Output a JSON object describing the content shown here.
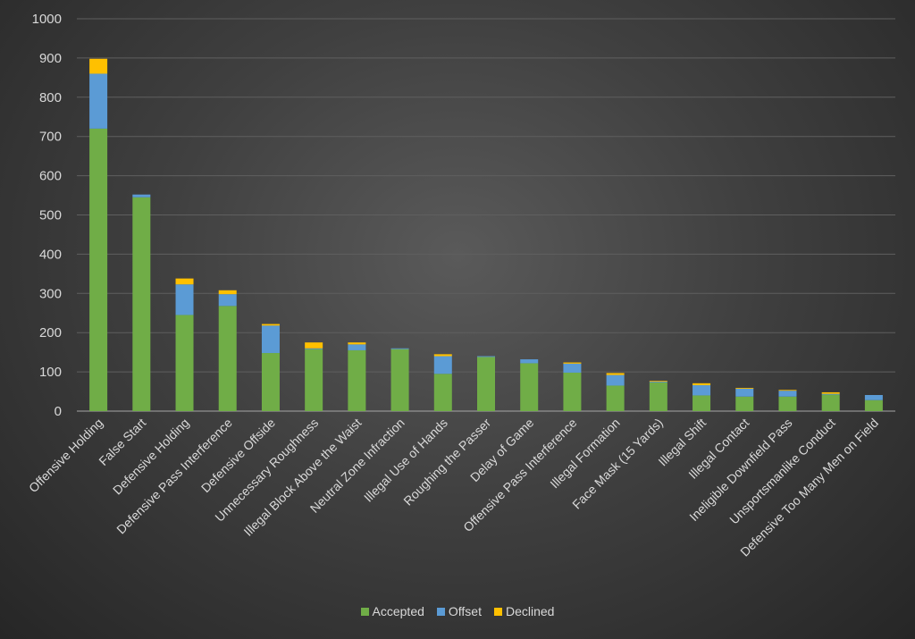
{
  "chart_data": {
    "type": "bar",
    "stacked": true,
    "title": "",
    "xlabel": "",
    "ylabel": "",
    "ylim": [
      0,
      1000
    ],
    "yticks": [
      0,
      100,
      200,
      300,
      400,
      500,
      600,
      700,
      800,
      900,
      1000
    ],
    "grid": true,
    "legend_position": "bottom-center",
    "categories": [
      "Offensive Holding",
      "False Start",
      "Defensive Holding",
      "Defensive Pass Interference",
      "Defensive Offside",
      "Unnecessary Roughness",
      "Illegal Block Above the Waist",
      "Neutral Zone Infraction",
      "Illegal Use of Hands",
      "Roughing the Passer",
      "Delay of Game",
      "Offensive Pass Interference",
      "Illegal Formation",
      "Face Mask (15 Yards)",
      "Illegal Shift",
      "Illegal Contact",
      "Ineligible Downfield Pass",
      "Unsportsmanlike Conduct",
      "Defensive Too Many Men on Field"
    ],
    "series": [
      {
        "name": "Accepted",
        "color": "#70ad47",
        "values": [
          720,
          545,
          245,
          268,
          148,
          158,
          155,
          158,
          95,
          138,
          122,
          98,
          65,
          73,
          40,
          37,
          37,
          42,
          28
        ]
      },
      {
        "name": "Offset",
        "color": "#5b9bd5",
        "values": [
          140,
          7,
          78,
          30,
          70,
          2,
          15,
          2,
          45,
          2,
          10,
          23,
          27,
          2,
          26,
          20,
          15,
          2,
          13
        ]
      },
      {
        "name": "Declined",
        "color": "#ffc000",
        "values": [
          38,
          0,
          15,
          10,
          4,
          15,
          5,
          0,
          5,
          0,
          0,
          3,
          5,
          2,
          5,
          2,
          2,
          4,
          0
        ]
      }
    ]
  }
}
